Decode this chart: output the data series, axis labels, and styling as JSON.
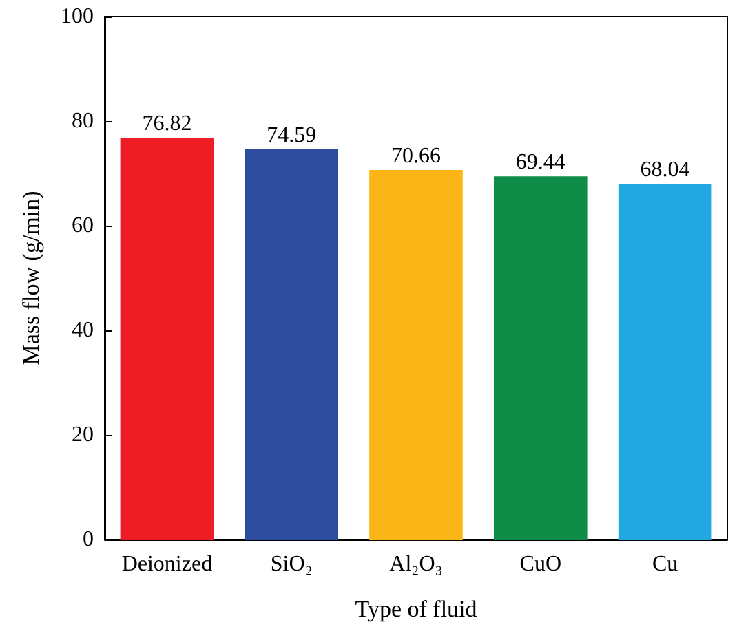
{
  "chart_data": {
    "type": "bar",
    "xlabel": "Type of fluid",
    "ylabel": "Mass flow (g/min)",
    "categories": [
      "Deionized",
      "SiO₂",
      "Al₂O₃",
      "CuO",
      "Cu"
    ],
    "values": [
      76.82,
      74.59,
      70.66,
      69.44,
      68.04
    ],
    "colors": [
      "#ee1d25",
      "#2f4d9e",
      "#fbb517",
      "#0f8c48",
      "#22a7e0"
    ],
    "ylim": [
      0,
      100
    ],
    "yticks": [
      0,
      20,
      40,
      60,
      80,
      100
    ],
    "data_labels": true
  }
}
